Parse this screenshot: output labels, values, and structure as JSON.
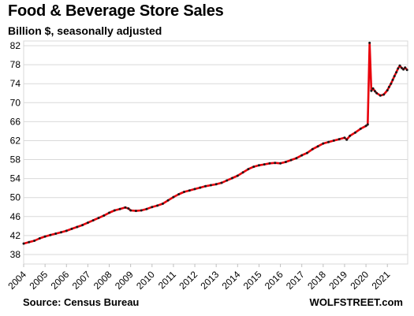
{
  "chart_data": {
    "type": "line",
    "title": "Food & Beverage Store Sales",
    "subtitle": "Billion $, seasonally adjusted",
    "source": "Source: Census Bureau",
    "brand": "WOLFSTREET.com",
    "xlim": [
      2004.0,
      2021.95
    ],
    "ylim": [
      36,
      83
    ],
    "y_ticks": [
      38,
      42,
      46,
      50,
      54,
      58,
      62,
      66,
      70,
      74,
      78,
      82
    ],
    "x_tick_labels": [
      "2004",
      "2005",
      "2006",
      "2007",
      "2008",
      "2009",
      "2010",
      "2011",
      "2012",
      "2013",
      "2014",
      "2015",
      "2016",
      "2017",
      "2018",
      "2019",
      "2020",
      "2021"
    ],
    "grid": true,
    "colors": {
      "line": "#e8000b",
      "marker": "#1a1a1a",
      "grid": "#d9d9d9"
    },
    "series": [
      {
        "x": [
          2004.0,
          2004.25,
          2004.5,
          2004.75,
          2005.0,
          2005.25,
          2005.5,
          2005.75,
          2006.0,
          2006.25,
          2006.5,
          2006.75,
          2007.0,
          2007.25,
          2007.5,
          2007.75,
          2008.0,
          2008.25,
          2008.5,
          2008.75,
          2008.9,
          2009.0,
          2009.25,
          2009.5,
          2009.75,
          2010.0,
          2010.25,
          2010.5,
          2010.75,
          2011.0,
          2011.25,
          2011.5,
          2011.75,
          2012.0,
          2012.25,
          2012.5,
          2012.75,
          2013.0,
          2013.25,
          2013.5,
          2013.75,
          2014.0,
          2014.25,
          2014.5,
          2014.75,
          2015.0,
          2015.25,
          2015.5,
          2015.75,
          2016.0,
          2016.25,
          2016.5,
          2016.75,
          2017.0,
          2017.25,
          2017.5,
          2017.75,
          2018.0,
          2018.25,
          2018.5,
          2018.75,
          2019.0,
          2019.1,
          2019.25,
          2019.5,
          2019.75,
          2020.0,
          2020.08,
          2020.17,
          2020.25,
          2020.33,
          2020.42,
          2020.5,
          2020.67,
          2020.83,
          2021.0,
          2021.08,
          2021.17,
          2021.25,
          2021.33,
          2021.42,
          2021.5,
          2021.58,
          2021.67,
          2021.75,
          2021.83,
          2021.92
        ],
        "y": [
          40.3,
          40.6,
          40.9,
          41.4,
          41.8,
          42.1,
          42.4,
          42.7,
          43.0,
          43.4,
          43.8,
          44.2,
          44.7,
          45.2,
          45.7,
          46.2,
          46.8,
          47.3,
          47.6,
          47.9,
          47.7,
          47.3,
          47.2,
          47.3,
          47.6,
          48.0,
          48.3,
          48.7,
          49.4,
          50.1,
          50.7,
          51.2,
          51.5,
          51.8,
          52.1,
          52.4,
          52.6,
          52.8,
          53.1,
          53.6,
          54.1,
          54.6,
          55.3,
          56.0,
          56.5,
          56.8,
          57.0,
          57.2,
          57.3,
          57.2,
          57.5,
          57.9,
          58.3,
          58.9,
          59.4,
          60.2,
          60.8,
          61.4,
          61.7,
          62.0,
          62.3,
          62.6,
          62.2,
          63.0,
          63.7,
          64.5,
          65.1,
          65.4,
          82.6,
          72.5,
          73.0,
          72.4,
          72.0,
          71.5,
          71.7,
          72.6,
          73.3,
          74.0,
          74.8,
          75.6,
          76.4,
          77.2,
          77.8,
          77.3,
          77.0,
          77.4,
          76.9
        ]
      }
    ]
  }
}
